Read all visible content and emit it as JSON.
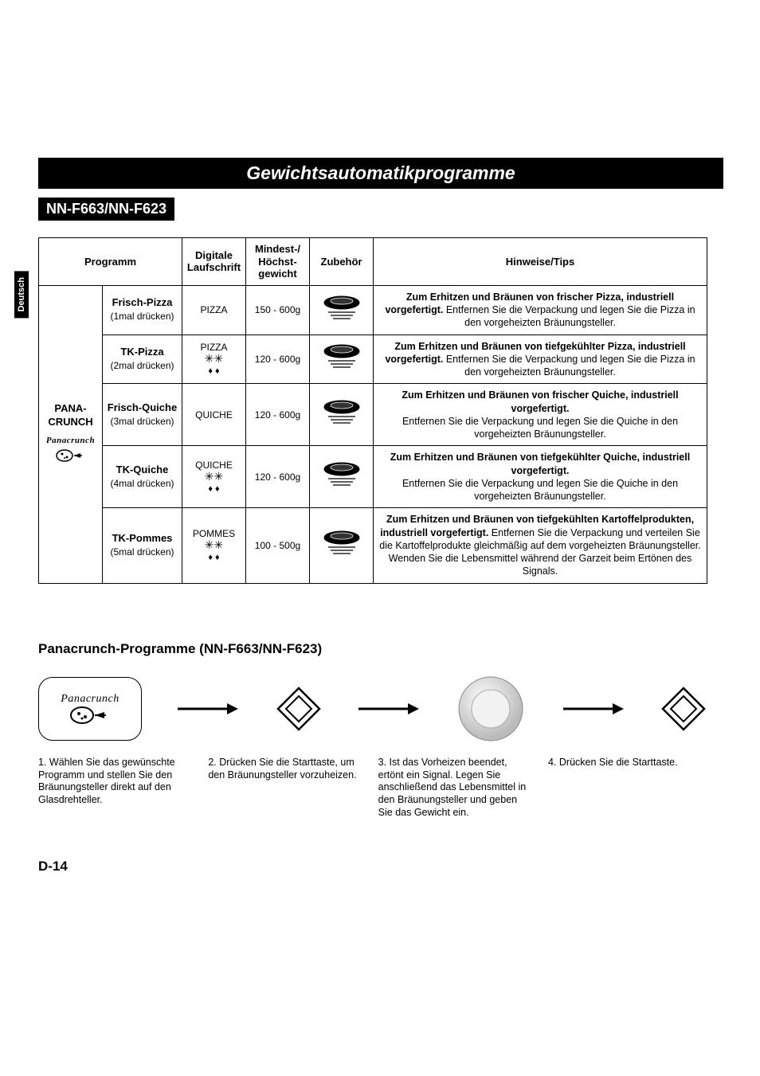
{
  "side_tab": "Deutsch",
  "title": "Gewichtsautomatikprogramme",
  "subtitle": "NN-F663/NN-F623",
  "columns": {
    "programm": "Programm",
    "digital": "Digitale Laufschrift",
    "weight": "Mindest-/ Höchst-gewicht",
    "accessory": "Zubehör",
    "tips": "Hinweise/Tips"
  },
  "prog_category": "PANA-CRUNCH",
  "panacrunch_label": "Panacrunch",
  "rows": [
    {
      "name": "Frisch-Pizza",
      "press": "(1mal drücken)",
      "digi": "PIZZA",
      "frozen": false,
      "weight": "150 - 600g",
      "tip_bold": "Zum Erhitzen und Bräunen von frischer Pizza, industriell vorgefertigt.",
      "tip_rest": " Entfernen Sie die Verpackung und legen Sie die Pizza in den vorgeheizten Bräunungsteller."
    },
    {
      "name": "TK-Pizza",
      "press": "(2mal drücken)",
      "digi": "PIZZA",
      "frozen": true,
      "weight": "120 - 600g",
      "tip_bold": "Zum Erhitzen und Bräunen von tiefgekühlter Pizza, industriell vorgefertigt.",
      "tip_rest": " Entfernen Sie die Verpackung und legen Sie die Pizza in den vorgeheizten Bräunungsteller."
    },
    {
      "name": "Frisch-Quiche",
      "press": "(3mal drücken)",
      "digi": "QUICHE",
      "frozen": false,
      "weight": "120 - 600g",
      "tip_bold": "Zum Erhitzen und Bräunen von frischer Quiche, industriell vorgefertigt.",
      "tip_rest": "\nEntfernen Sie die Verpackung und legen Sie die Quiche in den vorgeheizten Bräunungsteller."
    },
    {
      "name": "TK-Quiche",
      "press": "(4mal drücken)",
      "digi": "QUICHE",
      "frozen": true,
      "weight": "120 - 600g",
      "tip_bold": "Zum Erhitzen und Bräunen von tiefgekühlter Quiche, industriell vorgefertigt.",
      "tip_rest": "\nEntfernen Sie die Verpackung und legen Sie die Quiche in den vorgeheizten Bräunungsteller."
    },
    {
      "name": "TK-Pommes",
      "press": "(5mal drücken)",
      "digi": "POMMES",
      "frozen": true,
      "weight": "100 - 500g",
      "tip_bold": "Zum Erhitzen und Bräunen von tiefgekühlten Kartoffelprodukten, industriell vorgefertigt.",
      "tip_rest": " Entfernen Sie die Verpackung und verteilen Sie die Kartoffelprodukte gleichmäßig auf dem vorgeheizten Bräunungsteller. Wenden Sie die Lebensmittel während der Garzeit beim Ertönen des Signals."
    }
  ],
  "section_heading": "Panacrunch-Programme (NN-F663/NN-F623)",
  "steps": [
    "1. Wählen Sie das gewünschte Programm und stellen Sie den Bräunungsteller direkt auf den Glasdrehteller.",
    "2. Drücken Sie die Starttaste, um den Bräunungsteller vorzuheizen.",
    "3. Ist das Vorheizen beendet, ertönt ein Signal. Legen Sie anschließend das Lebensmittel in den Bräunungsteller und geben Sie das Gewicht ein.",
    "4. Drücken Sie die Starttaste."
  ],
  "page": "D-14",
  "icons": {
    "snowflakes": "✳✳",
    "drops": "♦ ♦"
  }
}
